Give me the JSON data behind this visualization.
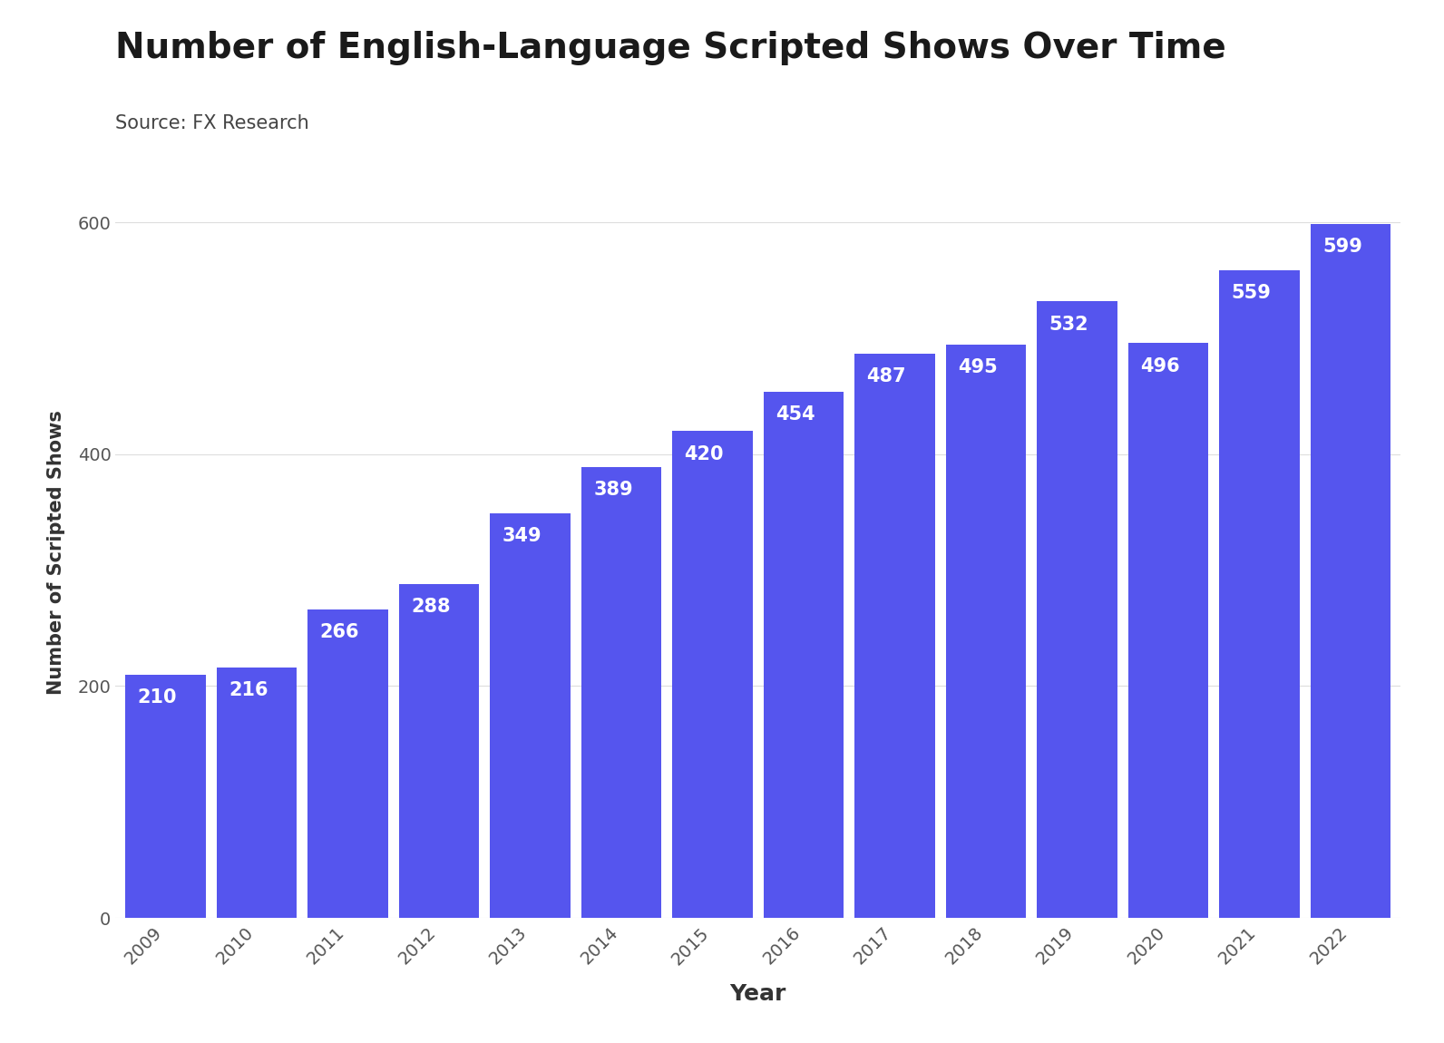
{
  "title": "Number of English-Language Scripted Shows Over Time",
  "source": "Source: FX Research",
  "xlabel": "Year",
  "ylabel": "Number of Scripted Shows",
  "years": [
    2009,
    2010,
    2011,
    2012,
    2013,
    2014,
    2015,
    2016,
    2017,
    2018,
    2019,
    2020,
    2021,
    2022
  ],
  "values": [
    210,
    216,
    266,
    288,
    349,
    389,
    420,
    454,
    487,
    495,
    532,
    496,
    559,
    599
  ],
  "bar_color": "#5555ee",
  "label_color": "#ffffff",
  "title_color": "#1a1a1a",
  "source_color": "#444444",
  "axis_label_color": "#333333",
  "tick_color": "#555555",
  "grid_color": "#dddddd",
  "ylim": [
    0,
    630
  ],
  "yticks": [
    0,
    200,
    400,
    600
  ],
  "title_fontsize": 28,
  "source_fontsize": 15,
  "ylabel_fontsize": 15,
  "xlabel_fontsize": 18,
  "bar_label_fontsize": 15,
  "tick_fontsize": 14,
  "background_color": "#ffffff"
}
